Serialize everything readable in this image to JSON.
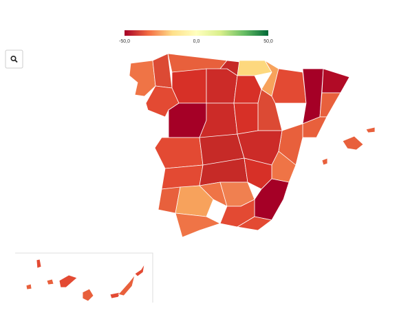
{
  "colorbar": {
    "range": [
      -50,
      50
    ],
    "ticks": [
      {
        "value": -50,
        "label": "-50,0"
      },
      {
        "value": 0,
        "label": "0,0"
      },
      {
        "value": 50,
        "label": "50,0"
      }
    ],
    "colorscale": [
      "#a50026",
      "#f46d43",
      "#fee08b",
      "#ffffbf",
      "#d9ef8b",
      "#66bd63",
      "#006837"
    ]
  }
}
